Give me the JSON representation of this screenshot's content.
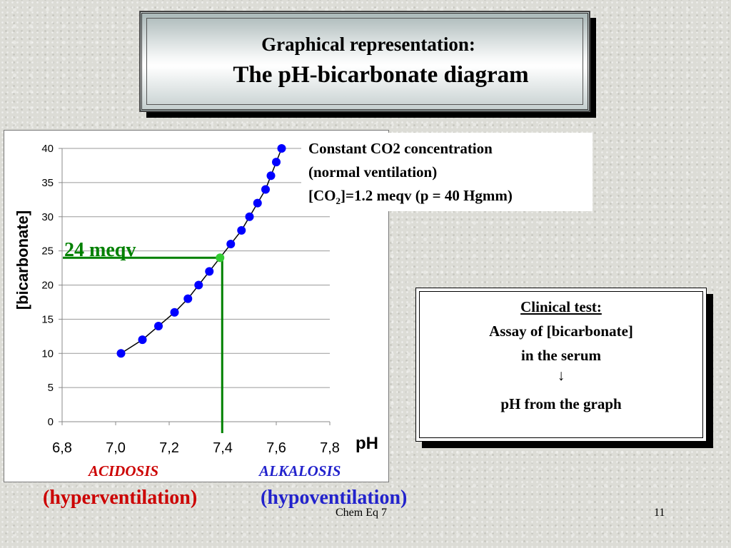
{
  "title": {
    "line1": "Graphical representation:",
    "line2": "The pH-bicarbonate diagram"
  },
  "chart_data": {
    "type": "scatter",
    "title": "",
    "xlabel": "pH",
    "ylabel": "[bicarbonate]",
    "xlim": [
      6.8,
      7.8
    ],
    "ylim": [
      0,
      40
    ],
    "x_ticks": [
      "6,8",
      "7,0",
      "7,2",
      "7,4",
      "7,6",
      "7,8"
    ],
    "y_ticks": [
      "0",
      "5",
      "10",
      "15",
      "20",
      "25",
      "30",
      "35",
      "40"
    ],
    "x_tick_values": [
      6.8,
      7.0,
      7.2,
      7.4,
      7.6,
      7.8
    ],
    "y_tick_values": [
      0,
      5,
      10,
      15,
      20,
      25,
      30,
      35,
      40
    ],
    "grid": "horizontal",
    "series": [
      {
        "color": "#0000ff",
        "x": [
          7.02,
          7.1,
          7.16,
          7.22,
          7.27,
          7.31,
          7.35,
          7.43,
          7.47,
          7.5,
          7.53,
          7.56,
          7.58,
          7.6,
          7.62
        ],
        "y": [
          10,
          12,
          14,
          16,
          18,
          20,
          22,
          26,
          28,
          30,
          32,
          34,
          36,
          38,
          40
        ]
      }
    ],
    "marker": {
      "x": 7.39,
      "y": 24,
      "color": "#33cc33",
      "line_color": "#008000",
      "label": "24 meqv"
    }
  },
  "co2_box": {
    "line1": "Constant CO2 concentration",
    "line2": "(normal ventilation)",
    "line3_pre": "[CO",
    "line3_sub": "2",
    "line3_post": "]=1.2 meqv (p = 40 Hgmm)"
  },
  "clinical": {
    "heading": "Clinical test:",
    "line1": "Assay of [bicarbonate]",
    "line2": "in the serum",
    "arrow": "↓",
    "line3": "pH from the graph"
  },
  "zones": {
    "acidosis": "ACIDOSIS",
    "alkalosis": "ALKALOSIS",
    "hyper": "(hyperventilation)",
    "hypo": "(hypoventilation)",
    "acidosis_color": "#cc0000",
    "alkalosis_color": "#2222cc"
  },
  "footer": {
    "center": "Chem Eq 7",
    "page": "11"
  }
}
